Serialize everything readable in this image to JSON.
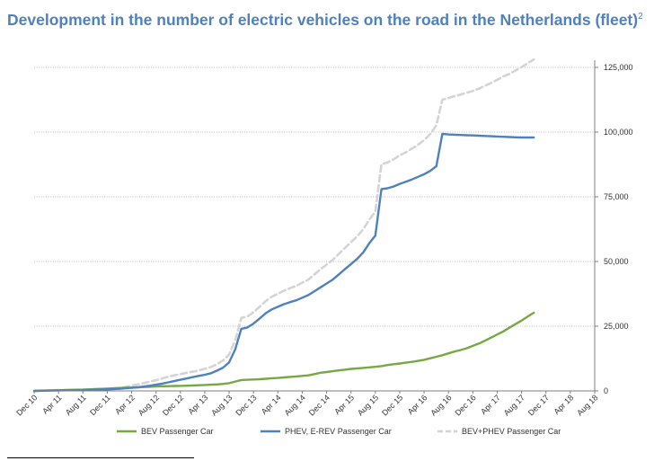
{
  "title": "Development in the number of electric vehicles on the road in the Netherlands (fleet)",
  "title_superscript": "2",
  "colors": {
    "bev": "#77a843",
    "phev": "#4f81bd",
    "total": "#d4d4d4",
    "grid": "#a6a6a6",
    "axis": "#7f7f7f",
    "text": "#333333",
    "title": "#4f81bd"
  },
  "chart_data": {
    "type": "line",
    "x_tick_labels": [
      "Dec 10",
      "Apr 11",
      "Aug 11",
      "Dec 11",
      "Apr 12",
      "Aug 12",
      "Dec 12",
      "Apr 13",
      "Aug 13",
      "Dec 13",
      "Apr 14",
      "Aug 14",
      "Dec 14",
      "Apr 15",
      "Aug 15",
      "Dec 15",
      "Apr 16",
      "Aug 16",
      "Dec 16",
      "Apr 17",
      "Aug 17",
      "Dec 17",
      "Apr 18",
      "Aug 18"
    ],
    "y_tick_labels": [
      "0",
      "25,000",
      "50,000",
      "75,000",
      "100,000",
      "125,000"
    ],
    "ylim": [
      0,
      125000
    ],
    "y_axis_side": "right",
    "grid": "horizontal dotted",
    "legend_position": "bottom",
    "series": [
      {
        "name": "BEV Passenger Car",
        "color": "#77a843",
        "dashed": false,
        "values": [
          [
            0,
            0
          ],
          [
            1,
            100
          ],
          [
            2,
            150
          ],
          [
            3,
            200
          ],
          [
            4,
            250
          ],
          [
            5,
            300
          ],
          [
            6,
            400
          ],
          [
            7,
            450
          ],
          [
            8,
            500
          ],
          [
            9,
            600
          ],
          [
            10,
            700
          ],
          [
            11,
            800
          ],
          [
            12,
            900
          ],
          [
            13,
            1000
          ],
          [
            14,
            1100
          ],
          [
            15,
            1200
          ],
          [
            16,
            1300
          ],
          [
            17,
            1400
          ],
          [
            18,
            1500
          ],
          [
            19,
            1600
          ],
          [
            20,
            1700
          ],
          [
            21,
            1800
          ],
          [
            22,
            1850
          ],
          [
            23,
            1900
          ],
          [
            24,
            1950
          ],
          [
            25,
            2000
          ],
          [
            26,
            2100
          ],
          [
            27,
            2200
          ],
          [
            28,
            2300
          ],
          [
            29,
            2400
          ],
          [
            30,
            2500
          ],
          [
            31,
            2700
          ],
          [
            32,
            3000
          ],
          [
            33,
            3600
          ],
          [
            34,
            4200
          ],
          [
            35,
            4300
          ],
          [
            36,
            4400
          ],
          [
            37,
            4500
          ],
          [
            38,
            4700
          ],
          [
            39,
            4900
          ],
          [
            40,
            5000
          ],
          [
            41,
            5200
          ],
          [
            42,
            5400
          ],
          [
            43,
            5600
          ],
          [
            44,
            5800
          ],
          [
            45,
            6000
          ],
          [
            46,
            6500
          ],
          [
            47,
            7000
          ],
          [
            48,
            7300
          ],
          [
            49,
            7600
          ],
          [
            50,
            7900
          ],
          [
            51,
            8200
          ],
          [
            52,
            8500
          ],
          [
            53,
            8700
          ],
          [
            54,
            8900
          ],
          [
            55,
            9100
          ],
          [
            56,
            9300
          ],
          [
            57,
            9600
          ],
          [
            58,
            10000
          ],
          [
            59,
            10300
          ],
          [
            60,
            10600
          ],
          [
            61,
            10900
          ],
          [
            62,
            11200
          ],
          [
            63,
            11600
          ],
          [
            64,
            12000
          ],
          [
            65,
            12600
          ],
          [
            66,
            13200
          ],
          [
            67,
            13800
          ],
          [
            68,
            14500
          ],
          [
            69,
            15200
          ],
          [
            70,
            15800
          ],
          [
            71,
            16500
          ],
          [
            72,
            17400
          ],
          [
            73,
            18300
          ],
          [
            74,
            19400
          ],
          [
            75,
            20600
          ],
          [
            76,
            21800
          ],
          [
            77,
            23000
          ],
          [
            78,
            24400
          ],
          [
            79,
            25800
          ],
          [
            80,
            27200
          ],
          [
            81,
            28700
          ],
          [
            82,
            30200
          ]
        ]
      },
      {
        "name": "PHEV, E-REV Passenger Car",
        "color": "#4f81bd",
        "dashed": false,
        "values": [
          [
            0,
            0
          ],
          [
            4,
            200
          ],
          [
            8,
            350
          ],
          [
            12,
            600
          ],
          [
            14,
            800
          ],
          [
            15,
            1000
          ],
          [
            16,
            1200
          ],
          [
            17,
            1400
          ],
          [
            18,
            1700
          ],
          [
            19,
            2000
          ],
          [
            20,
            2400
          ],
          [
            21,
            2800
          ],
          [
            22,
            3300
          ],
          [
            23,
            3800
          ],
          [
            24,
            4300
          ],
          [
            25,
            4800
          ],
          [
            26,
            5300
          ],
          [
            27,
            5800
          ],
          [
            28,
            6200
          ],
          [
            29,
            6800
          ],
          [
            30,
            7800
          ],
          [
            31,
            9000
          ],
          [
            32,
            11000
          ],
          [
            33,
            16000
          ],
          [
            34,
            24000
          ],
          [
            35,
            24500
          ],
          [
            36,
            26000
          ],
          [
            37,
            28000
          ],
          [
            38,
            30000
          ],
          [
            39,
            31500
          ],
          [
            40,
            32500
          ],
          [
            41,
            33500
          ],
          [
            42,
            34300
          ],
          [
            43,
            35000
          ],
          [
            44,
            36000
          ],
          [
            45,
            37000
          ],
          [
            46,
            38500
          ],
          [
            47,
            40000
          ],
          [
            48,
            41500
          ],
          [
            49,
            43000
          ],
          [
            50,
            45000
          ],
          [
            51,
            47000
          ],
          [
            52,
            49000
          ],
          [
            53,
            51000
          ],
          [
            54,
            53500
          ],
          [
            55,
            57000
          ],
          [
            56,
            60000
          ],
          [
            57,
            78000
          ],
          [
            58,
            78300
          ],
          [
            59,
            79000
          ],
          [
            60,
            80000
          ],
          [
            61,
            80800
          ],
          [
            62,
            81700
          ],
          [
            63,
            82700
          ],
          [
            64,
            83700
          ],
          [
            65,
            85000
          ],
          [
            66,
            86800
          ],
          [
            67,
            99300
          ],
          [
            68,
            99100
          ],
          [
            69,
            99000
          ],
          [
            70,
            98900
          ],
          [
            71,
            98800
          ],
          [
            72,
            98700
          ],
          [
            73,
            98600
          ],
          [
            74,
            98500
          ],
          [
            75,
            98400
          ],
          [
            76,
            98300
          ],
          [
            77,
            98200
          ],
          [
            78,
            98100
          ],
          [
            79,
            98000
          ],
          [
            80,
            97900
          ],
          [
            81,
            97900
          ],
          [
            82,
            97900
          ]
        ]
      },
      {
        "name": "BEV+PHEV Passenger Car",
        "color": "#d4d4d4",
        "dashed": true,
        "values": [
          [
            0,
            0
          ],
          [
            4,
            300
          ],
          [
            8,
            500
          ],
          [
            12,
            800
          ],
          [
            14,
            1200
          ],
          [
            15,
            1500
          ],
          [
            16,
            2000
          ],
          [
            17,
            2500
          ],
          [
            18,
            3000
          ],
          [
            19,
            3600
          ],
          [
            20,
            4100
          ],
          [
            21,
            4800
          ],
          [
            22,
            5500
          ],
          [
            23,
            6000
          ],
          [
            24,
            6500
          ],
          [
            25,
            7000
          ],
          [
            26,
            7400
          ],
          [
            27,
            7900
          ],
          [
            28,
            8500
          ],
          [
            29,
            9200
          ],
          [
            30,
            10300
          ],
          [
            31,
            11800
          ],
          [
            32,
            14000
          ],
          [
            33,
            19500
          ],
          [
            34,
            28200
          ],
          [
            35,
            28800
          ],
          [
            36,
            30400
          ],
          [
            37,
            32500
          ],
          [
            38,
            34700
          ],
          [
            39,
            36400
          ],
          [
            40,
            37500
          ],
          [
            41,
            38700
          ],
          [
            42,
            39700
          ],
          [
            43,
            40600
          ],
          [
            44,
            41800
          ],
          [
            45,
            43000
          ],
          [
            46,
            45000
          ],
          [
            47,
            47000
          ],
          [
            48,
            48800
          ],
          [
            49,
            50600
          ],
          [
            50,
            52900
          ],
          [
            51,
            55200
          ],
          [
            52,
            57500
          ],
          [
            53,
            59700
          ],
          [
            54,
            62400
          ],
          [
            55,
            66100
          ],
          [
            56,
            69300
          ],
          [
            57,
            87600
          ],
          [
            58,
            88300
          ],
          [
            59,
            89500
          ],
          [
            60,
            91000
          ],
          [
            61,
            92200
          ],
          [
            62,
            93600
          ],
          [
            63,
            95100
          ],
          [
            64,
            96900
          ],
          [
            65,
            99200
          ],
          [
            66,
            102600
          ],
          [
            67,
            112500
          ],
          [
            68,
            113200
          ],
          [
            69,
            113900
          ],
          [
            70,
            114500
          ],
          [
            71,
            115200
          ],
          [
            72,
            115900
          ],
          [
            73,
            116800
          ],
          [
            74,
            117900
          ],
          [
            75,
            119000
          ],
          [
            76,
            120200
          ],
          [
            77,
            121500
          ],
          [
            78,
            122500
          ],
          [
            79,
            123800
          ],
          [
            80,
            125100
          ],
          [
            81,
            126600
          ],
          [
            82,
            128100
          ]
        ]
      }
    ]
  }
}
